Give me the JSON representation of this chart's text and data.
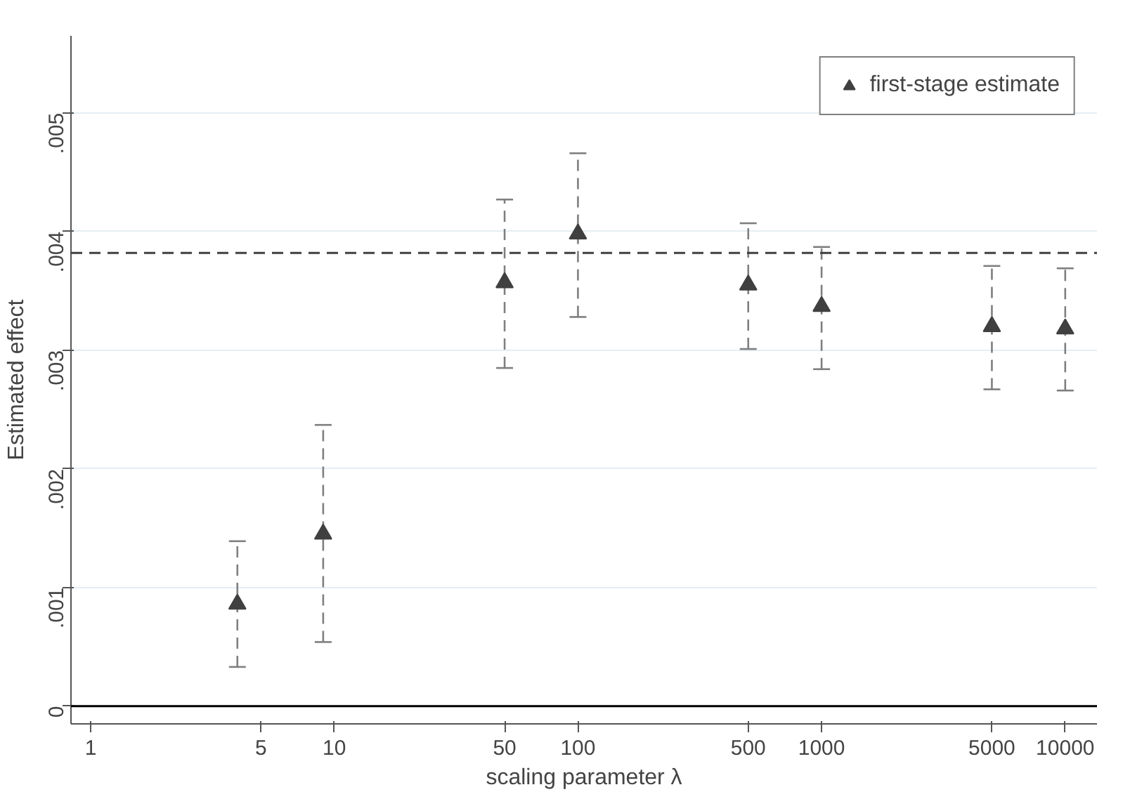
{
  "chart_data": {
    "type": "scatter",
    "xlabel": "scaling parameter λ",
    "ylabel": "Estimated effect",
    "x": [
      4,
      9,
      50,
      100,
      500,
      1000,
      5000,
      10000
    ],
    "series": [
      {
        "name": "first-stage estimate",
        "color": "#404040",
        "values": [
          0.00086,
          0.00145,
          0.00357,
          0.00398,
          0.00355,
          0.00337,
          0.0032,
          0.00318
        ],
        "errors": [
          [
            0.00033,
            0.00139
          ],
          [
            0.00054,
            0.00237
          ],
          [
            0.00285,
            0.00427
          ],
          [
            0.00328,
            0.00466
          ],
          [
            0.00301,
            0.00407
          ],
          [
            0.00284,
            0.00387
          ],
          [
            0.00267,
            0.00371
          ],
          [
            0.00266,
            0.00369
          ]
        ]
      }
    ],
    "log": "x",
    "xlim": [
      0.83,
      13500.0
    ],
    "ylim": [
      -0.00015,
      0.00565
    ],
    "xticks": [
      1,
      5,
      10,
      50,
      100,
      500,
      1000,
      5000,
      10000
    ],
    "yticks": [
      {
        "value": 0,
        "label": "0"
      },
      {
        "value": 0.001,
        "label": ".001"
      },
      {
        "value": 0.002,
        "label": ".002"
      },
      {
        "value": 0.003,
        "label": ".003"
      },
      {
        "value": 0.004,
        "label": ".004"
      },
      {
        "value": 0.005,
        "label": ".005"
      }
    ],
    "ref_lines": [
      {
        "axis": "y",
        "value": 0.00382,
        "color": "#404040",
        "line_style": "dashed"
      },
      {
        "axis": "y",
        "value": 0,
        "color": "#000000",
        "line_style": "solid"
      }
    ],
    "grid": "y",
    "legend": "top right",
    "marker": "triangle"
  }
}
